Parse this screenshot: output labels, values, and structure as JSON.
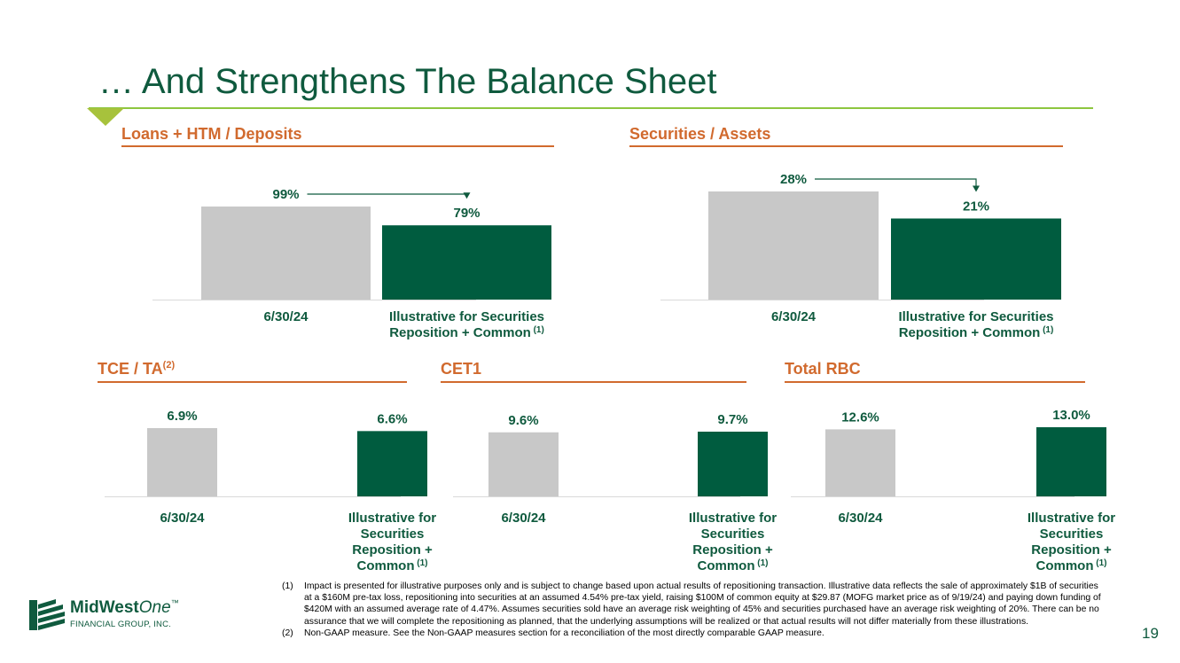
{
  "slide": {
    "title": "… And Strengthens The Balance Sheet",
    "page_number": "19"
  },
  "colors": {
    "baseline": "#c8c8c8",
    "illustrative": "#005c3f",
    "accent": "#d16a2e",
    "title": "#0f5a3e"
  },
  "logo": {
    "name_main": "MidWest",
    "name_italic": "One",
    "tm": "™",
    "sub": "FINANCIAL GROUP, INC."
  },
  "footnotes": [
    {
      "num": "(1)",
      "text": "Impact is presented for illustrative purposes only and is subject to change based upon actual results of repositioning transaction. Illustrative data reflects the sale of approximately $1B of securities at a $160M pre-tax loss, repositioning into securities at an assumed 4.54% pre-tax yield, raising $100M of common equity at $29.87 (MOFG market price as of 9/19/24) and paying down funding of $420M with an assumed average rate of 4.47%. Assumes securities sold have an average risk weighting of 45% and securities purchased have an average risk weighting of 20%. There can be no assurance that we will complete the repositioning as planned, that the underlying assumptions will be realized or that actual results will not differ materially from these illustrations."
    },
    {
      "num": "(2)",
      "text": "Non-GAAP measure. See the Non-GAAP measures section for a reconciliation of the most directly comparable GAAP measure."
    }
  ],
  "chart_data": [
    {
      "type": "bar",
      "title": "Loans + HTM / Deposits",
      "title_sup": "",
      "categories": [
        "6/30/24",
        "Illustrative for Securities Reposition + Common (1)"
      ],
      "values": [
        99,
        79
      ],
      "data_labels": [
        "99%",
        "79%"
      ],
      "unit": "%",
      "arrow": true
    },
    {
      "type": "bar",
      "title": "Securities / Assets",
      "title_sup": "",
      "categories": [
        "6/30/24",
        "Illustrative for Securities Reposition + Common (1)"
      ],
      "values": [
        28,
        21
      ],
      "data_labels": [
        "28%",
        "21%"
      ],
      "unit": "%",
      "arrow": true
    },
    {
      "type": "bar",
      "title": "TCE / TA",
      "title_sup": "(2)",
      "categories": [
        "6/30/24",
        "Illustrative for Securities Reposition + Common (1)"
      ],
      "values": [
        6.9,
        6.6
      ],
      "data_labels": [
        "6.9%",
        "6.6%"
      ],
      "unit": "%",
      "arrow": false
    },
    {
      "type": "bar",
      "title": "CET1",
      "title_sup": "",
      "categories": [
        "6/30/24",
        "Illustrative for Securities Reposition + Common (1)"
      ],
      "values": [
        9.6,
        9.7
      ],
      "data_labels": [
        "9.6%",
        "9.7%"
      ],
      "unit": "%",
      "arrow": false
    },
    {
      "type": "bar",
      "title": "Total RBC",
      "title_sup": "",
      "categories": [
        "6/30/24",
        "Illustrative for Securities Reposition + Common (1)"
      ],
      "values": [
        12.6,
        13.0
      ],
      "data_labels": [
        "12.6%",
        "13.0%"
      ],
      "unit": "%",
      "arrow": false
    }
  ]
}
